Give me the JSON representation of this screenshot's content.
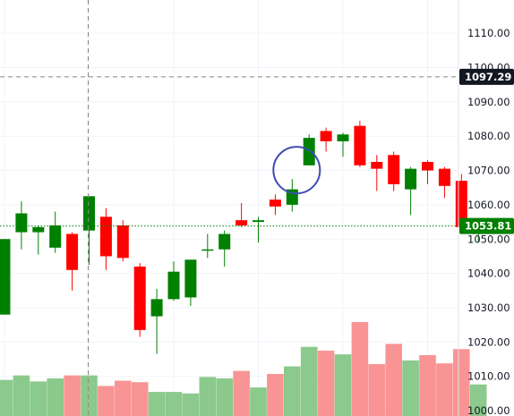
{
  "chart_data": {
    "type": "candlestick",
    "ylim": [
      999,
      1122
    ],
    "y_ticks": [
      1000,
      1010,
      1020,
      1030,
      1040,
      1050,
      1060,
      1070,
      1080,
      1090,
      1100,
      1110
    ],
    "y_tick_labels": [
      "1000.00",
      "1010.00",
      "1020.00",
      "1030.00",
      "1040.00",
      "1050.00",
      "1060.00",
      "1070.00",
      "1080.00",
      "1090.00",
      "1100.00",
      "1110.00"
    ],
    "grid": true,
    "candles": [
      {
        "open": 1028.0,
        "high": 1050.0,
        "low": 1028.0,
        "close": 1050.0,
        "volume": 0.48
      },
      {
        "open": 1052.0,
        "high": 1061.0,
        "low": 1047.0,
        "close": 1057.5,
        "volume": 0.54
      },
      {
        "open": 1052.0,
        "high": 1054.0,
        "low": 1045.5,
        "close": 1053.5,
        "volume": 0.46
      },
      {
        "open": 1047.5,
        "high": 1058.0,
        "low": 1046.0,
        "close": 1054.0,
        "volume": 0.5
      },
      {
        "open": 1051.5,
        "high": 1052.0,
        "low": 1035.0,
        "close": 1041.0,
        "volume": 0.54
      },
      {
        "open": 1052.5,
        "high": 1062.5,
        "low": 1042.5,
        "close": 1062.5,
        "volume": 0.54
      },
      {
        "open": 1056.5,
        "high": 1059.0,
        "low": 1041.0,
        "close": 1045.0,
        "volume": 0.4
      },
      {
        "open": 1054.0,
        "high": 1055.5,
        "low": 1043.5,
        "close": 1044.5,
        "volume": 0.47
      },
      {
        "open": 1042.0,
        "high": 1043.0,
        "low": 1021.5,
        "close": 1023.5,
        "volume": 0.45
      },
      {
        "open": 1027.5,
        "high": 1035.5,
        "low": 1016.5,
        "close": 1032.5,
        "volume": 0.32
      },
      {
        "open": 1032.5,
        "high": 1043.5,
        "low": 1032.0,
        "close": 1040.5,
        "volume": 0.32
      },
      {
        "open": 1033.0,
        "high": 1044.0,
        "low": 1030.5,
        "close": 1044.0,
        "volume": 0.3
      },
      {
        "open": 1047.0,
        "high": 1051.5,
        "low": 1044.5,
        "close": 1047.0,
        "volume": 0.52
      },
      {
        "open": 1047.0,
        "high": 1052.5,
        "low": 1042.0,
        "close": 1051.5,
        "volume": 0.5
      },
      {
        "open": 1055.5,
        "high": 1060.5,
        "low": 1053.5,
        "close": 1054.0,
        "volume": 0.6
      },
      {
        "open": 1055.0,
        "high": 1056.5,
        "low": 1049.0,
        "close": 1055.5,
        "volume": 0.38
      },
      {
        "open": 1061.5,
        "high": 1063.0,
        "low": 1057.0,
        "close": 1059.5,
        "volume": 0.56
      },
      {
        "open": 1060.0,
        "high": 1067.5,
        "low": 1058.0,
        "close": 1064.5,
        "volume": 0.66
      },
      {
        "open": 1071.5,
        "high": 1080.5,
        "low": 1071.5,
        "close": 1079.5,
        "volume": 0.92
      },
      {
        "open": 1081.5,
        "high": 1082.5,
        "low": 1075.5,
        "close": 1078.5,
        "volume": 0.87
      },
      {
        "open": 1078.5,
        "high": 1081.0,
        "low": 1074.0,
        "close": 1080.5,
        "volume": 0.82
      },
      {
        "open": 1083.0,
        "high": 1084.5,
        "low": 1071.0,
        "close": 1071.5,
        "volume": 1.25
      },
      {
        "open": 1072.5,
        "high": 1074.5,
        "low": 1064.0,
        "close": 1070.5,
        "volume": 0.69
      },
      {
        "open": 1074.5,
        "high": 1075.5,
        "low": 1064.0,
        "close": 1066.0,
        "volume": 0.96
      },
      {
        "open": 1064.5,
        "high": 1071.0,
        "low": 1057.0,
        "close": 1070.5,
        "volume": 0.74
      },
      {
        "open": 1072.5,
        "high": 1073.0,
        "low": 1066.0,
        "close": 1070.0,
        "volume": 0.81
      },
      {
        "open": 1070.5,
        "high": 1071.0,
        "low": 1062.0,
        "close": 1065.5,
        "volume": 0.7
      },
      {
        "open": 1067.0,
        "high": 1069.0,
        "low": 1053.0,
        "close": 1053.5,
        "volume": 0.89
      },
      {
        "open": 1053.0,
        "high": 1054.5,
        "low": 1049.0,
        "close": 1054.0,
        "volume": 0.42
      }
    ],
    "last_price": 1053.81,
    "last_price_label": "1053.81",
    "crosshair_price": 1097.29,
    "crosshair_price_label": "1097.29",
    "crosshair_candle_index": 5,
    "highlight_circle_candle_index": 17,
    "highlight_circle_price": 1067.5,
    "colors": {
      "up": "#008000",
      "down": "#ff0000",
      "volume_up": "#8cc98c",
      "volume_down": "#f99494",
      "last_price_tag": "#008000",
      "crosshair_tag": "#131722",
      "circle": "#3f4db4",
      "grid": "#f0f3fa"
    }
  }
}
